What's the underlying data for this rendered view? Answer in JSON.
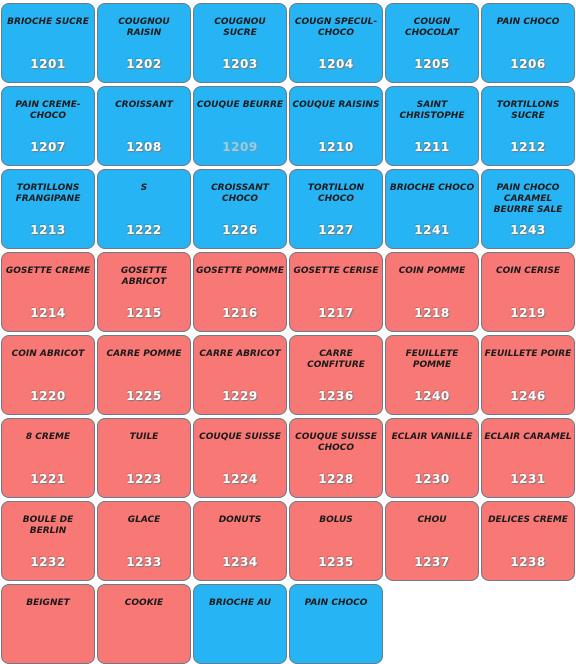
{
  "colors": {
    "blue": "#27b4f4",
    "red": "#f87876",
    "code_text": "#ffffff",
    "code_dim": "#8fd0ee",
    "border": "#6b7a86"
  },
  "tiles": [
    {
      "name": "BRIOCHE SUCRE",
      "code": "1201",
      "color": "blue"
    },
    {
      "name": "COUGNOU RAISIN",
      "code": "1202",
      "color": "blue"
    },
    {
      "name": "COUGNOU SUCRE",
      "code": "1203",
      "color": "blue"
    },
    {
      "name": "COUGN SPECUL-CHOCO",
      "code": "1204",
      "color": "blue"
    },
    {
      "name": "COUGN CHOCOLAT",
      "code": "1205",
      "color": "blue"
    },
    {
      "name": "PAIN CHOCO",
      "code": "1206",
      "color": "blue"
    },
    {
      "name": "PAIN CREME-CHOCO",
      "code": "1207",
      "color": "blue"
    },
    {
      "name": "CROISSANT",
      "code": "1208",
      "color": "blue"
    },
    {
      "name": "COUQUE BEURRE",
      "code": "1209",
      "color": "blue",
      "dim": true
    },
    {
      "name": "COUQUE RAISINS",
      "code": "1210",
      "color": "blue"
    },
    {
      "name": "SAINT CHRISTOPHE",
      "code": "1211",
      "color": "blue"
    },
    {
      "name": "TORTILLONS SUCRE",
      "code": "1212",
      "color": "blue"
    },
    {
      "name": "TORTILLONS FRANGIPANE",
      "code": "1213",
      "color": "blue"
    },
    {
      "name": "S",
      "code": "1222",
      "color": "blue"
    },
    {
      "name": "CROISSANT CHOCO",
      "code": "1226",
      "color": "blue"
    },
    {
      "name": "TORTILLON CHOCO",
      "code": "1227",
      "color": "blue"
    },
    {
      "name": "BRIOCHE CHOCO",
      "code": "1241",
      "color": "blue"
    },
    {
      "name": "PAIN CHOCO CARAMEL BEURRE SALE",
      "code": "1243",
      "color": "blue"
    },
    {
      "name": "GOSETTE CREME",
      "code": "1214",
      "color": "red"
    },
    {
      "name": "GOSETTE ABRICOT",
      "code": "1215",
      "color": "red"
    },
    {
      "name": "GOSETTE POMME",
      "code": "1216",
      "color": "red"
    },
    {
      "name": "GOSETTE CERISE",
      "code": "1217",
      "color": "red"
    },
    {
      "name": "COIN POMME",
      "code": "1218",
      "color": "red"
    },
    {
      "name": "COIN CERISE",
      "code": "1219",
      "color": "red"
    },
    {
      "name": "COIN ABRICOT",
      "code": "1220",
      "color": "red"
    },
    {
      "name": "CARRE POMME",
      "code": "1225",
      "color": "red"
    },
    {
      "name": "CARRE ABRICOT",
      "code": "1229",
      "color": "red"
    },
    {
      "name": "CARRE CONFITURE",
      "code": "1236",
      "color": "red"
    },
    {
      "name": "FEUILLETE POMME",
      "code": "1240",
      "color": "red"
    },
    {
      "name": "FEUILLETE POIRE",
      "code": "1246",
      "color": "red"
    },
    {
      "name": "8 CREME",
      "code": "1221",
      "color": "red"
    },
    {
      "name": "TUILE",
      "code": "1223",
      "color": "red"
    },
    {
      "name": "COUQUE SUISSE",
      "code": "1224",
      "color": "red"
    },
    {
      "name": "COUQUE SUISSE CHOCO",
      "code": "1228",
      "color": "red"
    },
    {
      "name": "ECLAIR VANILLE",
      "code": "1230",
      "color": "red"
    },
    {
      "name": "ECLAIR CARAMEL",
      "code": "1231",
      "color": "red"
    },
    {
      "name": "BOULE DE BERLIN",
      "code": "1232",
      "color": "red"
    },
    {
      "name": "GLACE",
      "code": "1233",
      "color": "red"
    },
    {
      "name": "DONUTS",
      "code": "1234",
      "color": "red"
    },
    {
      "name": "BOLUS",
      "code": "1235",
      "color": "red"
    },
    {
      "name": "CHOU",
      "code": "1237",
      "color": "red"
    },
    {
      "name": "DELICES CREME",
      "code": "1238",
      "color": "red"
    },
    {
      "name": "BEIGNET",
      "code": "",
      "color": "red"
    },
    {
      "name": "COOKIE",
      "code": "",
      "color": "red"
    },
    {
      "name": "BRIOCHE AU",
      "code": "",
      "color": "blue"
    },
    {
      "name": "PAIN CHOCO",
      "code": "",
      "color": "blue"
    }
  ]
}
